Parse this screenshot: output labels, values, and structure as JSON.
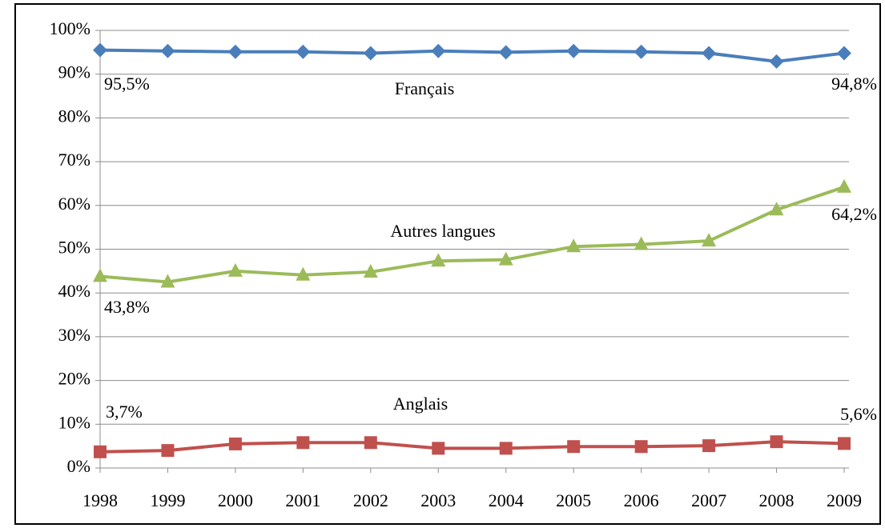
{
  "chart_data": {
    "type": "line",
    "x": [
      1998,
      1999,
      2000,
      2001,
      2002,
      2003,
      2004,
      2005,
      2006,
      2007,
      2008,
      2009
    ],
    "xlim": [
      1998,
      2009
    ],
    "xticks": [
      1998,
      1999,
      2000,
      2001,
      2002,
      2003,
      2004,
      2005,
      2006,
      2007,
      2008,
      2009
    ],
    "ylim": [
      0,
      100
    ],
    "yticks": [
      {
        "value": 0,
        "label": "0%"
      },
      {
        "value": 10,
        "label": "10%"
      },
      {
        "value": 20,
        "label": "20%"
      },
      {
        "value": 30,
        "label": "30%"
      },
      {
        "value": 40,
        "label": "40%"
      },
      {
        "value": 50,
        "label": "50%"
      },
      {
        "value": 60,
        "label": "60%"
      },
      {
        "value": 70,
        "label": "70%"
      },
      {
        "value": 80,
        "label": "80%"
      },
      {
        "value": 90,
        "label": "90%"
      },
      {
        "value": 100,
        "label": "100%"
      }
    ],
    "grid": true,
    "series": [
      {
        "name": "Français",
        "color": "#4a7ebb",
        "marker": "diamond",
        "values": [
          95.5,
          95.3,
          95.1,
          95.1,
          94.8,
          95.3,
          95.0,
          95.3,
          95.1,
          94.8,
          92.9,
          94.8
        ],
        "value_labels": [
          "95,5%",
          null,
          null,
          null,
          null,
          null,
          null,
          null,
          null,
          null,
          null,
          "94,8%"
        ]
      },
      {
        "name": "Autres langues",
        "color": "#9bbb59",
        "marker": "triangle",
        "values": [
          43.8,
          42.5,
          45.0,
          44.1,
          44.8,
          47.3,
          47.6,
          50.6,
          51.1,
          51.9,
          59.0,
          64.2
        ],
        "value_labels": [
          "43,8%",
          null,
          null,
          null,
          null,
          null,
          null,
          null,
          null,
          null,
          null,
          "64,2%"
        ]
      },
      {
        "name": "Anglais",
        "color": "#c0504d",
        "marker": "square",
        "values": [
          3.7,
          4.0,
          5.5,
          5.8,
          5.8,
          4.5,
          4.5,
          4.9,
          4.9,
          5.1,
          6.0,
          5.6
        ],
        "value_labels": [
          "3,7%",
          null,
          null,
          null,
          null,
          null,
          null,
          null,
          null,
          null,
          null,
          "5,6%"
        ]
      }
    ]
  }
}
